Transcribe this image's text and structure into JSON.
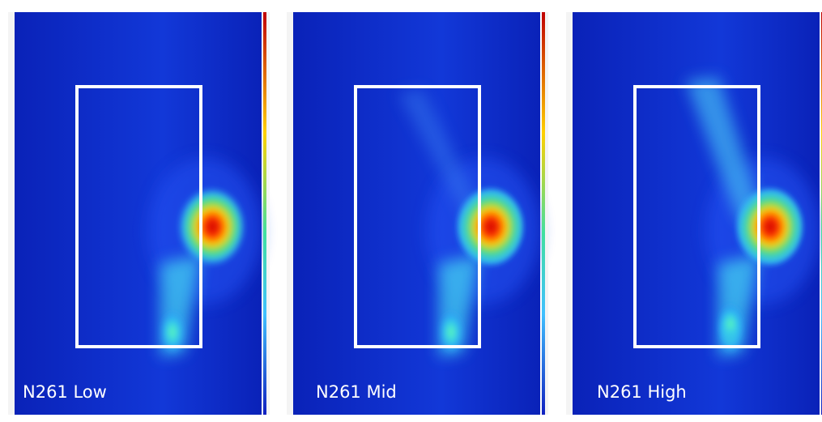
{
  "panels": [
    {
      "label": "N261 Low"
    },
    {
      "label": "N261 Mid"
    },
    {
      "label": "N261 High"
    }
  ]
}
